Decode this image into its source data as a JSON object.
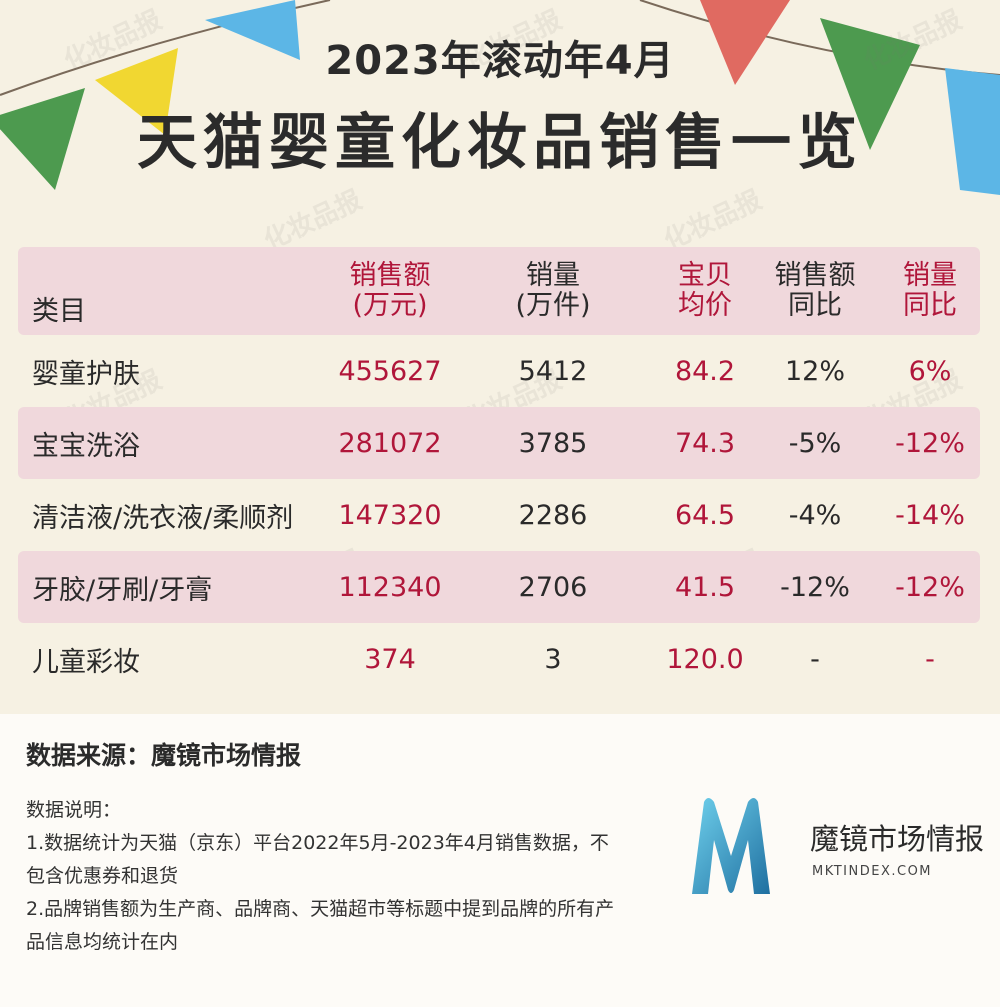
{
  "title": {
    "line1": "2023年滚动年4月",
    "line2": "天猫婴童化妆品销售一览"
  },
  "watermark": "化妆品报",
  "colors": {
    "background": "#f6f1e3",
    "row_shade": "#f0d8dc",
    "accent_red": "#b0163a",
    "flag_green": "#4d9a4f",
    "flag_yellow": "#f1d731",
    "flag_blue": "#5cb6e6",
    "flag_red": "#e06a61"
  },
  "table": {
    "headers": {
      "category": "类目",
      "sales_amount": [
        "销售额",
        "(万元)"
      ],
      "sales_volume": [
        "销量",
        "(万件)"
      ],
      "avg_price": [
        "宝贝",
        "均价"
      ],
      "sales_yoy": [
        "销售额",
        "同比"
      ],
      "volume_yoy": [
        "销量",
        "同比"
      ]
    },
    "rows": [
      {
        "category": "婴童护肤",
        "sales_amount": "455627",
        "sales_volume": "5412",
        "avg_price": "84.2",
        "sales_yoy": "12%",
        "volume_yoy": "6%"
      },
      {
        "category": "宝宝洗浴",
        "sales_amount": "281072",
        "sales_volume": "3785",
        "avg_price": "74.3",
        "sales_yoy": "-5%",
        "volume_yoy": "-12%"
      },
      {
        "category": "清洁液/洗衣液/柔顺剂",
        "sales_amount": "147320",
        "sales_volume": "2286",
        "avg_price": "64.5",
        "sales_yoy": "-4%",
        "volume_yoy": "-14%"
      },
      {
        "category": "牙胶/牙刷/牙膏",
        "sales_amount": "112340",
        "sales_volume": "2706",
        "avg_price": "41.5",
        "sales_yoy": "-12%",
        "volume_yoy": "-12%"
      },
      {
        "category": "儿童彩妆",
        "sales_amount": "374",
        "sales_volume": "3",
        "avg_price": "120.0",
        "sales_yoy": "-",
        "volume_yoy": "-"
      }
    ]
  },
  "footer": {
    "source": "数据来源：魔镜市场情报",
    "notes_title": "数据说明：",
    "note1": "1.数据统计为天猫（京东）平台2022年5月-2023年4月销售数据，不包含优惠券和退货",
    "note2": "2.品牌销售额为生产商、品牌商、天猫超市等标题中提到品牌的所有产品信息均统计在内",
    "logo_name": "魔镜市场情报",
    "logo_url": "MKTINDEX.COM"
  }
}
